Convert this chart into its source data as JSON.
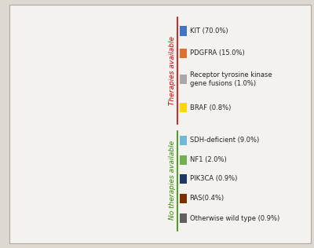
{
  "labels": [
    "KIT (70.0%)",
    "PDGFRA (15.0%)",
    "Receptor tyrosine kinase\ngene fusions (1.0%)",
    "BRAF (0.8%)",
    "SDH-deficient (9.0%)",
    "NF1 (2.0%)",
    "PIK3CA (0.9%)",
    "RAS(0.4%)",
    "Otherwise wild type (0.9%)"
  ],
  "values": [
    70.0,
    15.0,
    1.0,
    0.8,
    9.0,
    2.0,
    0.9,
    0.4,
    0.9
  ],
  "colors": [
    "#4472C4",
    "#E07030",
    "#A8A8A8",
    "#FFD700",
    "#70B8D8",
    "#70B050",
    "#1F3864",
    "#7B3000",
    "#606060"
  ],
  "background_color": "#DDD8D0",
  "panel_color": "#F4F2EE",
  "therapies_available_color": "#CC0000",
  "no_therapies_available_color": "#2E8B00",
  "therapies_available_label": "Therapies available",
  "no_therapies_available_label": "No therapies available",
  "startangle": 90,
  "legend_fontsize": 6.0,
  "rotated_label_fontsize": 6.5
}
